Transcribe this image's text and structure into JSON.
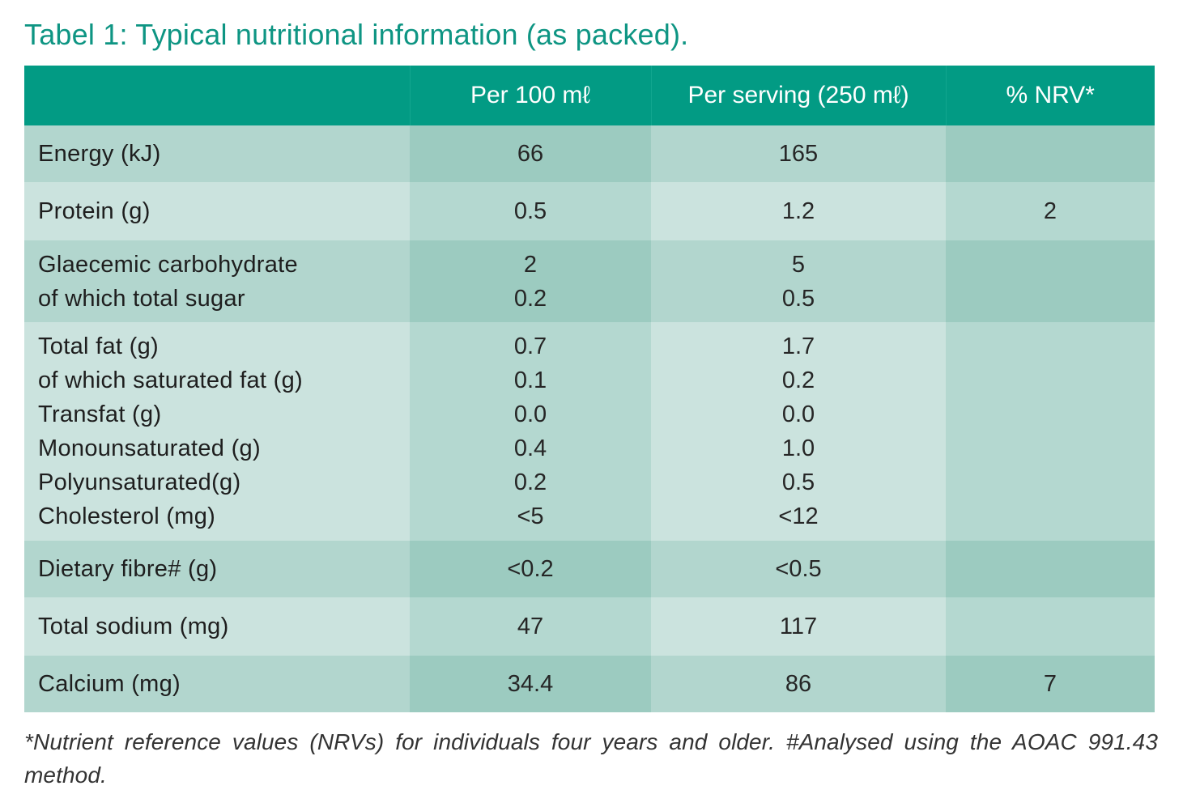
{
  "title": "Tabel 1: Typical nutritional information (as packed).",
  "columns": [
    "",
    "Per 100 mℓ",
    "Per serving (250 mℓ)",
    "% NRV*"
  ],
  "rows": [
    {
      "labels": [
        "Energy (kJ)"
      ],
      "per100": [
        "66"
      ],
      "serving": [
        "165"
      ],
      "nrv": [
        ""
      ]
    },
    {
      "labels": [
        "Protein (g)"
      ],
      "per100": [
        "0.5"
      ],
      "serving": [
        "1.2"
      ],
      "nrv": [
        "2"
      ]
    },
    {
      "labels": [
        "Glaecemic carbohydrate",
        "of which total sugar"
      ],
      "per100": [
        "2",
        "0.2"
      ],
      "serving": [
        "5",
        "0.5"
      ],
      "nrv": [
        ""
      ]
    },
    {
      "labels": [
        "Total fat (g)",
        "of which saturated fat (g)",
        "Transfat (g)",
        "Monounsaturated (g)",
        "Polyunsaturated(g)",
        "Cholesterol (mg)"
      ],
      "per100": [
        "0.7",
        "0.1",
        "0.0",
        "0.4",
        "0.2",
        "<5"
      ],
      "serving": [
        "1.7",
        "0.2",
        "0.0",
        "1.0",
        "0.5",
        "<12"
      ],
      "nrv": [
        ""
      ]
    },
    {
      "labels": [
        "Dietary fibre# (g)"
      ],
      "per100": [
        "<0.2"
      ],
      "serving": [
        "<0.5"
      ],
      "nrv": [
        ""
      ]
    },
    {
      "labels": [
        "Total sodium (mg)"
      ],
      "per100": [
        "47"
      ],
      "serving": [
        "117"
      ],
      "nrv": [
        ""
      ]
    },
    {
      "labels": [
        "Calcium (mg)"
      ],
      "per100": [
        "34.4"
      ],
      "serving": [
        "86"
      ],
      "nrv": [
        "7"
      ]
    }
  ],
  "footnote": "*Nutrient reference values (NRVs) for individuals four years and older. #Analysed using the AOAC 991.43 method.",
  "colors": {
    "title": "#0e9583",
    "header_bg": "#029b84",
    "row_odd_light": "#b2d6ce",
    "row_odd_dark": "#9ccbc0",
    "row_even_light": "#cbe3de",
    "row_even_dark": "#b4d8d0"
  }
}
